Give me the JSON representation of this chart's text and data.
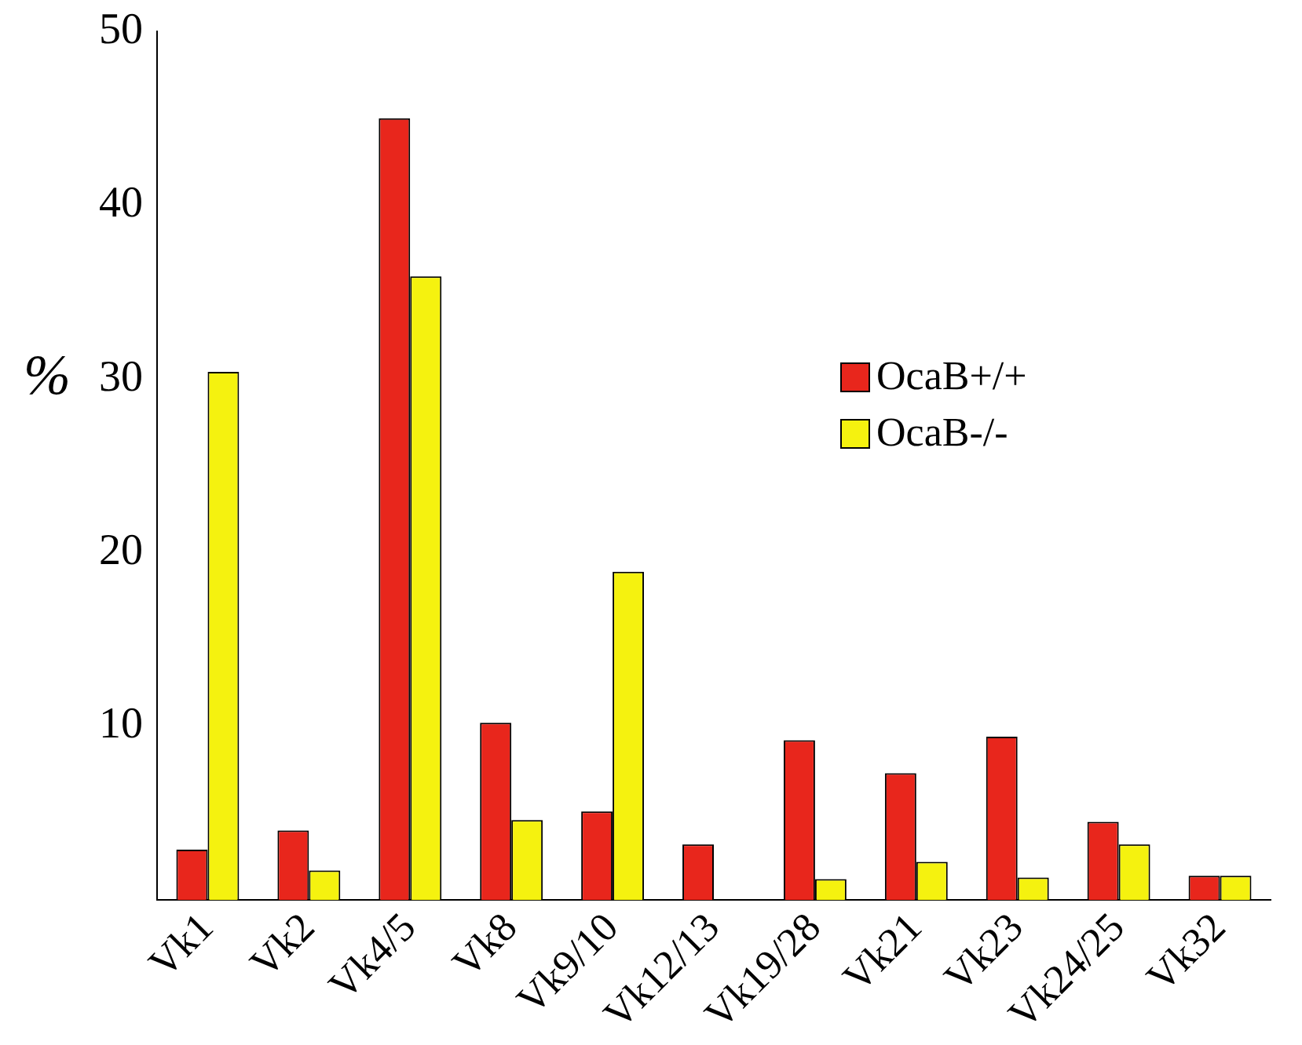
{
  "chart_data": {
    "type": "bar",
    "ylabel": "%",
    "categories": [
      "Vk1",
      "Vk2",
      "Vk4/5",
      "Vk8",
      "Vk9/10",
      "Vk12/13",
      "Vk19/28",
      "Vk21",
      "Vk23",
      "Vk24/25",
      "Vk32"
    ],
    "series": [
      {
        "name": "OcaB+/+",
        "color": "#e8261c",
        "values": [
          2.9,
          4.0,
          45.0,
          10.2,
          5.1,
          3.2,
          9.2,
          7.3,
          9.4,
          4.5,
          1.4
        ]
      },
      {
        "name": "OcaB-/-",
        "color": "#f5f20f",
        "values": [
          30.4,
          1.7,
          35.9,
          4.6,
          18.9,
          null,
          1.2,
          2.2,
          1.3,
          3.2,
          1.4
        ]
      }
    ],
    "ylim": [
      0,
      50
    ],
    "yticks": [
      10,
      20,
      30,
      40,
      50
    ],
    "grid": false,
    "legend": "right"
  }
}
